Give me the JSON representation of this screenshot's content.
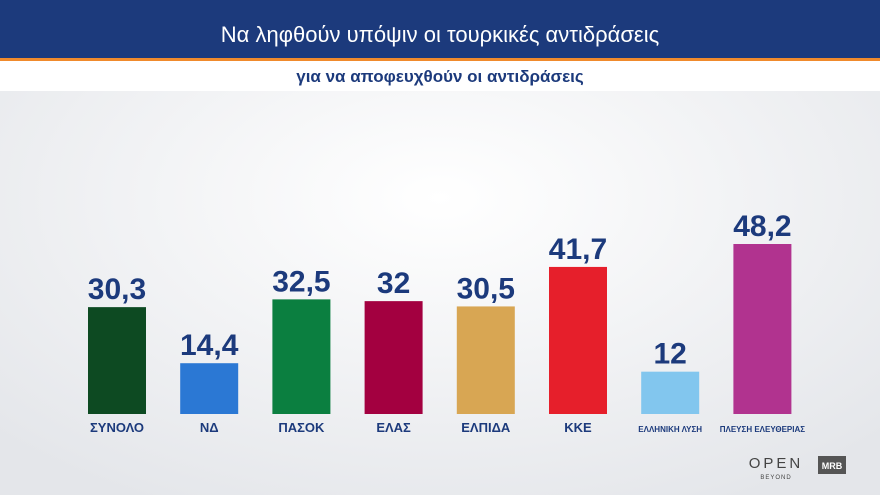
{
  "chart_data": {
    "type": "bar",
    "title": "Να ληφθούν υπόψιν οι τουρκικές αντιδράσεις",
    "subtitle": "για να αποφευχθούν οι αντιδράσεις",
    "categories": [
      "ΣΥΝΟΛΟ",
      "ΝΔ",
      "ΠΑΣΟΚ",
      "ΕΛΑΣ",
      "ΕΛΠΙΔΑ",
      "ΚΚΕ",
      "ΕΛΛΗΝΙΚΗ ΛΥΣΗ",
      "ΠΛΕΥΣΗ ΕΛΕΥΘΕΡΙΑΣ"
    ],
    "values": [
      30.3,
      14.4,
      32.5,
      32,
      30.5,
      41.7,
      12,
      48.2
    ],
    "value_labels": [
      "30,3",
      "14,4",
      "32,5",
      "32",
      "30,5",
      "41,7",
      "12",
      "48,2"
    ],
    "colors": [
      "#0d4a22",
      "#2b78d4",
      "#0b7f40",
      "#a30040",
      "#d8a653",
      "#e61f2b",
      "#82c6ee",
      "#b1338f"
    ]
  },
  "branding": {
    "broadcaster": "OPEN",
    "broadcaster_sub": "BEYOND",
    "pollster": "MRB"
  }
}
